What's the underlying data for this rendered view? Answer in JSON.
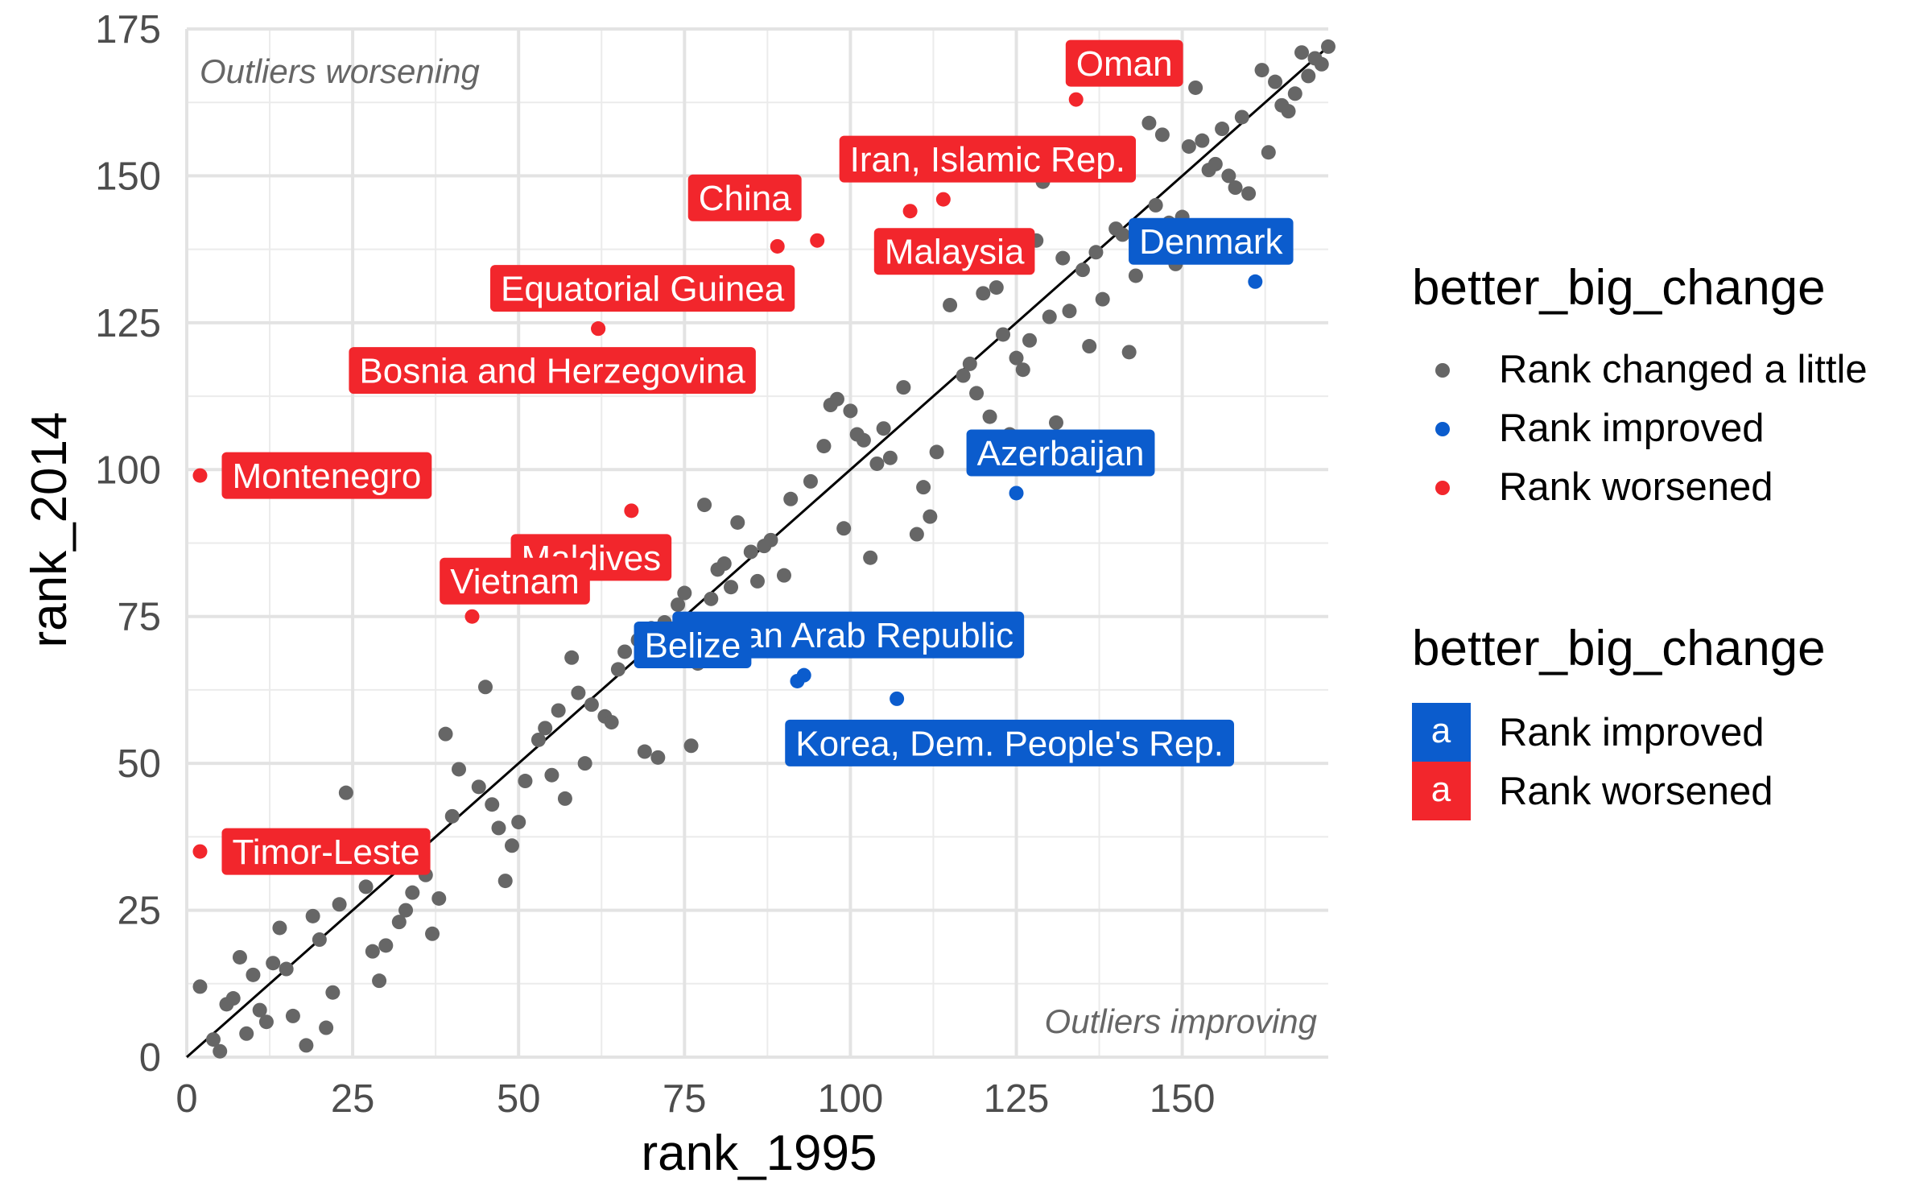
{
  "chart_data": {
    "type": "scatter",
    "title": "",
    "xlabel": "rank_1995",
    "ylabel": "rank_2014",
    "xlim": [
      0,
      172
    ],
    "ylim": [
      0,
      175
    ],
    "x_ticks": [
      0,
      25,
      50,
      75,
      100,
      125,
      150
    ],
    "y_ticks": [
      0,
      25,
      50,
      75,
      100,
      125,
      150,
      175
    ],
    "reference_line": {
      "slope": 1,
      "intercept": 0
    },
    "grid": true,
    "annotations": [
      {
        "text": "Outliers worsening",
        "position": "top-left"
      },
      {
        "text": "Outliers improving",
        "position": "bottom-right"
      }
    ],
    "legend": {
      "placement": "right",
      "points_title": "better_big_change",
      "points_entries": [
        {
          "label": "Rank changed a little",
          "color": "#666666"
        },
        {
          "label": "Rank improved",
          "color": "#0b5ccd"
        },
        {
          "label": "Rank worsened",
          "color": "#f2262c"
        }
      ],
      "labels_title": "better_big_change",
      "labels_key": "a",
      "labels_entries": [
        {
          "label": "Rank improved",
          "color": "#0b5ccd"
        },
        {
          "label": "Rank worsened",
          "color": "#f2262c"
        }
      ]
    },
    "series": [
      {
        "name": "Rank changed a little",
        "color": "#666666",
        "points": [
          [
            2,
            12
          ],
          [
            4,
            3
          ],
          [
            5,
            1
          ],
          [
            6,
            9
          ],
          [
            7,
            10
          ],
          [
            8,
            17
          ],
          [
            9,
            4
          ],
          [
            10,
            14
          ],
          [
            11,
            8
          ],
          [
            12,
            6
          ],
          [
            13,
            16
          ],
          [
            14,
            22
          ],
          [
            15,
            15
          ],
          [
            16,
            7
          ],
          [
            18,
            2
          ],
          [
            19,
            24
          ],
          [
            20,
            20
          ],
          [
            21,
            5
          ],
          [
            22,
            11
          ],
          [
            23,
            26
          ],
          [
            24,
            45
          ],
          [
            27,
            29
          ],
          [
            28,
            18
          ],
          [
            29,
            13
          ],
          [
            30,
            19
          ],
          [
            32,
            23
          ],
          [
            33,
            25
          ],
          [
            34,
            28
          ],
          [
            36,
            31
          ],
          [
            37,
            21
          ],
          [
            38,
            27
          ],
          [
            39,
            55
          ],
          [
            40,
            41
          ],
          [
            41,
            49
          ],
          [
            44,
            46
          ],
          [
            45,
            63
          ],
          [
            46,
            43
          ],
          [
            47,
            39
          ],
          [
            48,
            30
          ],
          [
            49,
            36
          ],
          [
            50,
            40
          ],
          [
            51,
            47
          ],
          [
            53,
            54
          ],
          [
            54,
            56
          ],
          [
            55,
            48
          ],
          [
            56,
            59
          ],
          [
            57,
            44
          ],
          [
            58,
            68
          ],
          [
            59,
            62
          ],
          [
            60,
            50
          ],
          [
            61,
            60
          ],
          [
            63,
            58
          ],
          [
            64,
            57
          ],
          [
            65,
            66
          ],
          [
            66,
            69
          ],
          [
            68,
            71
          ],
          [
            69,
            52
          ],
          [
            70,
            73
          ],
          [
            71,
            51
          ],
          [
            72,
            74
          ],
          [
            74,
            77
          ],
          [
            75,
            79
          ],
          [
            76,
            53
          ],
          [
            77,
            67
          ],
          [
            78,
            94
          ],
          [
            79,
            78
          ],
          [
            80,
            83
          ],
          [
            81,
            84
          ],
          [
            82,
            80
          ],
          [
            83,
            91
          ],
          [
            85,
            86
          ],
          [
            86,
            81
          ],
          [
            87,
            87
          ],
          [
            88,
            88
          ],
          [
            90,
            82
          ],
          [
            91,
            95
          ],
          [
            94,
            98
          ],
          [
            96,
            104
          ],
          [
            97,
            111
          ],
          [
            98,
            112
          ],
          [
            99,
            90
          ],
          [
            100,
            110
          ],
          [
            101,
            106
          ],
          [
            102,
            105
          ],
          [
            103,
            85
          ],
          [
            104,
            101
          ],
          [
            105,
            107
          ],
          [
            106,
            102
          ],
          [
            108,
            114
          ],
          [
            110,
            89
          ],
          [
            111,
            97
          ],
          [
            112,
            92
          ],
          [
            113,
            103
          ],
          [
            115,
            128
          ],
          [
            117,
            116
          ],
          [
            118,
            118
          ],
          [
            119,
            113
          ],
          [
            120,
            130
          ],
          [
            121,
            109
          ],
          [
            122,
            131
          ],
          [
            123,
            123
          ],
          [
            124,
            106
          ],
          [
            125,
            119
          ],
          [
            126,
            117
          ],
          [
            127,
            122
          ],
          [
            128,
            139
          ],
          [
            129,
            149
          ],
          [
            130,
            126
          ],
          [
            131,
            108
          ],
          [
            132,
            136
          ],
          [
            133,
            127
          ],
          [
            135,
            134
          ],
          [
            136,
            121
          ],
          [
            137,
            137
          ],
          [
            138,
            129
          ],
          [
            140,
            141
          ],
          [
            141,
            140
          ],
          [
            142,
            120
          ],
          [
            143,
            133
          ],
          [
            145,
            159
          ],
          [
            146,
            145
          ],
          [
            147,
            157
          ],
          [
            148,
            142
          ],
          [
            149,
            135
          ],
          [
            150,
            143
          ],
          [
            151,
            155
          ],
          [
            152,
            165
          ],
          [
            153,
            156
          ],
          [
            154,
            151
          ],
          [
            155,
            152
          ],
          [
            156,
            158
          ],
          [
            157,
            150
          ],
          [
            158,
            148
          ],
          [
            159,
            160
          ],
          [
            160,
            147
          ],
          [
            162,
            168
          ],
          [
            163,
            154
          ],
          [
            164,
            166
          ],
          [
            165,
            162
          ],
          [
            166,
            161
          ],
          [
            167,
            164
          ],
          [
            168,
            171
          ],
          [
            169,
            167
          ],
          [
            170,
            170
          ],
          [
            171,
            169
          ],
          [
            172,
            172
          ]
        ]
      },
      {
        "name": "Rank improved",
        "color": "#0b5ccd",
        "points": [
          {
            "x": 161,
            "y": 132,
            "label": "Denmark"
          },
          {
            "x": 125,
            "y": 96,
            "label": "Azerbaijan"
          },
          {
            "x": 93,
            "y": 65,
            "label": "Syrian Arab Republic"
          },
          {
            "x": 92,
            "y": 64,
            "label": "Belize"
          },
          {
            "x": 107,
            "y": 61,
            "label": "Korea, Dem. People's Rep."
          }
        ]
      },
      {
        "name": "Rank worsened",
        "color": "#f2262c",
        "points": [
          {
            "x": 134,
            "y": 163,
            "label": "Oman"
          },
          {
            "x": 114,
            "y": 146,
            "label": "Iran, Islamic Rep."
          },
          {
            "x": 109,
            "y": 144,
            "label": "Malaysia"
          },
          {
            "x": 95,
            "y": 139,
            "label": "China"
          },
          {
            "x": 89,
            "y": 138,
            "label": null
          },
          {
            "x": 62,
            "y": 124,
            "label": "Equatorial Guinea"
          },
          {
            "x": 62,
            "y": 124,
            "label": "Bosnia and Herzegovina"
          },
          {
            "x": 2,
            "y": 99,
            "label": "Montenegro"
          },
          {
            "x": 67,
            "y": 93,
            "label": "Maldives"
          },
          {
            "x": 43,
            "y": 75,
            "label": "Vietnam"
          },
          {
            "x": 2,
            "y": 35,
            "label": "Timor-Leste"
          }
        ]
      }
    ]
  }
}
